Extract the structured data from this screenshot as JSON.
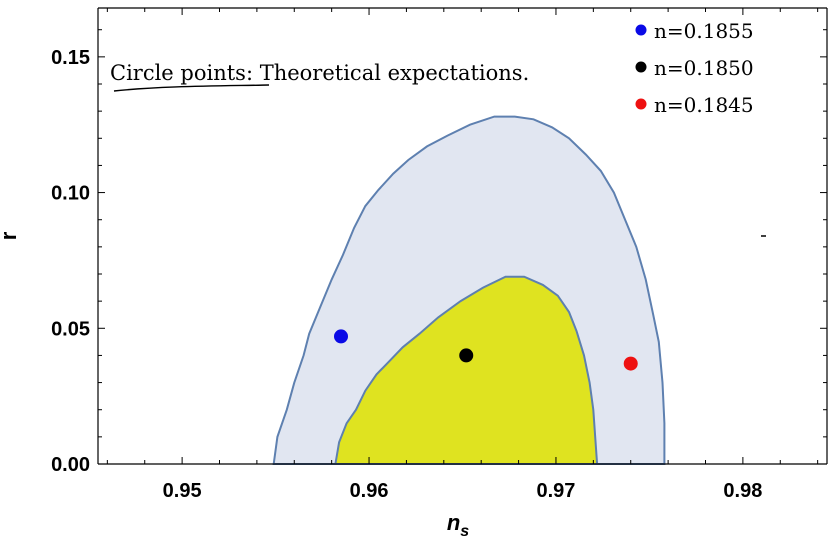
{
  "chart_data": {
    "type": "scatter",
    "title": "",
    "xlabel": "n",
    "xlabel_sub": "s",
    "ylabel": "r",
    "xlim": [
      0.9455,
      0.9845
    ],
    "ylim": [
      0.0,
      0.168
    ],
    "xticks": [
      0.95,
      0.96,
      0.97,
      0.98
    ],
    "xtick_labels": [
      "0.95",
      "0.96",
      "0.97",
      "0.98"
    ],
    "yticks": [
      0.0,
      0.05,
      0.1,
      0.15
    ],
    "ytick_labels": [
      "0.00",
      "0.05",
      "0.10",
      "0.15"
    ],
    "grid": false,
    "legend_position": "top-right",
    "annotation": {
      "underlined": "Circle points:",
      "rest": " Theoretical expectations."
    },
    "series": [
      {
        "name": "n=0.1855",
        "color": "#0a0ae6",
        "x": [
          0.9585
        ],
        "y": [
          0.047
        ]
      },
      {
        "name": "n=0.1850",
        "color": "#000000",
        "x": [
          0.9652
        ],
        "y": [
          0.04
        ]
      },
      {
        "name": "n=0.1845",
        "color": "#ee1111",
        "x": [
          0.974
        ],
        "y": [
          0.037
        ]
      }
    ],
    "contours": [
      {
        "level": "outer",
        "fill": "#e1e6f1",
        "stroke": "#5e80b0",
        "x": [
          0.9549,
          0.9551,
          0.9556,
          0.956,
          0.9565,
          0.9568,
          0.9574,
          0.958,
          0.9586,
          0.9592,
          0.9598,
          0.9605,
          0.9613,
          0.9621,
          0.9631,
          0.9642,
          0.9654,
          0.9667,
          0.9678,
          0.9688,
          0.9698,
          0.9707,
          0.9716,
          0.9724,
          0.9731,
          0.9737,
          0.9743,
          0.9748,
          0.9752,
          0.9755,
          0.9757,
          0.9758,
          0.9758
        ],
        "y": [
          0.0,
          0.01,
          0.02,
          0.03,
          0.04,
          0.048,
          0.058,
          0.068,
          0.077,
          0.087,
          0.095,
          0.101,
          0.107,
          0.112,
          0.117,
          0.121,
          0.125,
          0.128,
          0.128,
          0.127,
          0.124,
          0.12,
          0.114,
          0.108,
          0.1,
          0.09,
          0.08,
          0.068,
          0.055,
          0.045,
          0.03,
          0.015,
          0.0
        ]
      },
      {
        "level": "inner",
        "fill": "#dfe320",
        "stroke": "#5e80b0",
        "x": [
          0.9582,
          0.9584,
          0.9588,
          0.9593,
          0.9598,
          0.9604,
          0.9611,
          0.9618,
          0.9627,
          0.9637,
          0.9649,
          0.9661,
          0.9673,
          0.9683,
          0.9693,
          0.9701,
          0.9707,
          0.9711,
          0.9715,
          0.9718,
          0.972,
          0.9721,
          0.9722
        ],
        "y": [
          0.0,
          0.008,
          0.015,
          0.02,
          0.027,
          0.033,
          0.038,
          0.043,
          0.048,
          0.054,
          0.06,
          0.065,
          0.069,
          0.069,
          0.066,
          0.062,
          0.056,
          0.049,
          0.04,
          0.03,
          0.02,
          0.01,
          0.0
        ]
      }
    ]
  }
}
